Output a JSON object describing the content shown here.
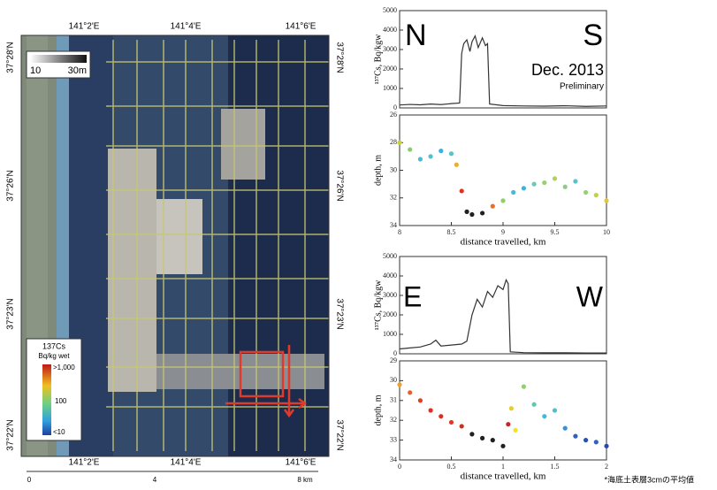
{
  "map": {
    "top_labels": [
      "141°2'E",
      "141°4'E",
      "141°6'E"
    ],
    "bottom_labels": [
      "141°2'E",
      "141°4'E",
      "141°6'E"
    ],
    "left_labels": [
      "37°28'N",
      "37°26'N",
      "37°23'N",
      "37°22'N"
    ],
    "right_labels": [
      "37°28'N",
      "37°26'N",
      "37°23'N",
      "37°22'N"
    ],
    "scale_labels": [
      "0",
      "4",
      "8 km"
    ],
    "depth_scale": [
      "10",
      "30m"
    ],
    "legend_title": "137Cs",
    "legend_unit": "Bq/kg wet",
    "legend_labels": [
      ">1,000",
      "100",
      "<10"
    ]
  },
  "chart_data": [
    {
      "type": "line",
      "ylabel": "¹³⁷Cs, Bq/kgw",
      "annotations": [
        "N",
        "S",
        "Dec. 2013",
        "Preliminary"
      ],
      "xlim": [
        8,
        10
      ],
      "ylim": [
        0,
        5000
      ],
      "yticks": [
        0,
        1000,
        2000,
        3000,
        4000,
        5000
      ],
      "color": "#333333",
      "x": [
        8,
        8.1,
        8.2,
        8.3,
        8.4,
        8.5,
        8.58,
        8.6,
        8.62,
        8.65,
        8.68,
        8.7,
        8.73,
        8.76,
        8.8,
        8.83,
        8.85,
        8.87,
        9,
        9.2,
        9.4,
        9.6,
        9.8,
        10
      ],
      "values": [
        150,
        180,
        160,
        200,
        170,
        220,
        250,
        2800,
        3300,
        3500,
        2900,
        3400,
        3700,
        3100,
        3600,
        3200,
        3300,
        200,
        120,
        100,
        90,
        110,
        80,
        100
      ]
    },
    {
      "type": "line",
      "ylabel": "depth, m",
      "xlabel": "distance travelled, km",
      "inverted": true,
      "xlim": [
        8,
        10
      ],
      "ylim": [
        26,
        34
      ],
      "yticks": [
        26,
        28,
        30,
        32,
        34
      ],
      "xticks": [
        8,
        8.5,
        9,
        9.5,
        10
      ],
      "x": [
        8,
        8.1,
        8.2,
        8.3,
        8.4,
        8.5,
        8.55,
        8.6,
        8.65,
        8.7,
        8.8,
        8.9,
        9,
        9.1,
        9.2,
        9.3,
        9.4,
        9.5,
        9.6,
        9.7,
        9.8,
        9.9,
        10
      ],
      "values": [
        28,
        28.5,
        29.2,
        29,
        28.6,
        28.8,
        29.6,
        31.5,
        33,
        33.2,
        33.1,
        32.6,
        32.2,
        31.6,
        31.3,
        31.0,
        30.9,
        30.6,
        31.2,
        30.8,
        31.6,
        31.8,
        32.2
      ],
      "colors": [
        "#c8d038",
        "#86d06a",
        "#4ab8d8",
        "#52c0d0",
        "#3ab0e0",
        "#58c4c8",
        "#e8b030",
        "#e03020",
        "#202020",
        "#202020",
        "#202020",
        "#e87028",
        "#90d060",
        "#48b8d8",
        "#40b0e0",
        "#70c8b0",
        "#98d070",
        "#b0d060",
        "#88d080",
        "#60c0c8",
        "#98d070",
        "#c0d050",
        "#e0c838"
      ]
    },
    {
      "type": "line",
      "ylabel": "¹³⁷Cs, Bq/kgw",
      "annotations": [
        "E",
        "W"
      ],
      "xlim": [
        0,
        2
      ],
      "ylim": [
        0,
        5000
      ],
      "yticks": [
        0,
        1000,
        2000,
        3000,
        4000,
        5000
      ],
      "color": "#333333",
      "x": [
        0,
        0.1,
        0.2,
        0.3,
        0.35,
        0.4,
        0.5,
        0.6,
        0.65,
        0.7,
        0.75,
        0.8,
        0.85,
        0.9,
        0.95,
        1.0,
        1.03,
        1.05,
        1.07,
        1.2,
        1.4,
        1.6,
        1.8,
        2
      ],
      "values": [
        250,
        300,
        350,
        500,
        700,
        400,
        450,
        500,
        650,
        2000,
        2800,
        2400,
        3200,
        2900,
        3500,
        3300,
        3800,
        3600,
        100,
        60,
        50,
        50,
        40,
        40
      ]
    },
    {
      "type": "line",
      "ylabel": "depth, m",
      "xlabel": "distance travelled, km",
      "inverted": true,
      "xlim": [
        0,
        2
      ],
      "ylim": [
        29,
        34
      ],
      "yticks": [
        29,
        30,
        31,
        32,
        33,
        34
      ],
      "xticks": [
        0,
        0.5,
        1,
        1.5,
        2
      ],
      "x": [
        0,
        0.1,
        0.2,
        0.3,
        0.4,
        0.5,
        0.6,
        0.7,
        0.8,
        0.9,
        1.0,
        1.05,
        1.08,
        1.12,
        1.2,
        1.3,
        1.4,
        1.5,
        1.6,
        1.7,
        1.8,
        1.9,
        2
      ],
      "values": [
        30.2,
        30.6,
        31,
        31.5,
        31.8,
        32.1,
        32.3,
        32.7,
        32.9,
        33,
        33.3,
        32.2,
        31.4,
        32.5,
        30.3,
        31.2,
        31.8,
        31.5,
        32.4,
        32.8,
        33,
        33.1,
        33.3
      ],
      "colors": [
        "#f0a030",
        "#e86028",
        "#e04020",
        "#e03020",
        "#d83020",
        "#e03828",
        "#c83020",
        "#202020",
        "#202020",
        "#202020",
        "#202020",
        "#d02020",
        "#e0d030",
        "#f0e030",
        "#90d070",
        "#60c8b0",
        "#48b8d8",
        "#50c0d0",
        "#3a90d8",
        "#3060c0",
        "#2850b0",
        "#3060c0",
        "#2848a8"
      ]
    }
  ],
  "footnote": "*海底土表層3cmの平均値"
}
